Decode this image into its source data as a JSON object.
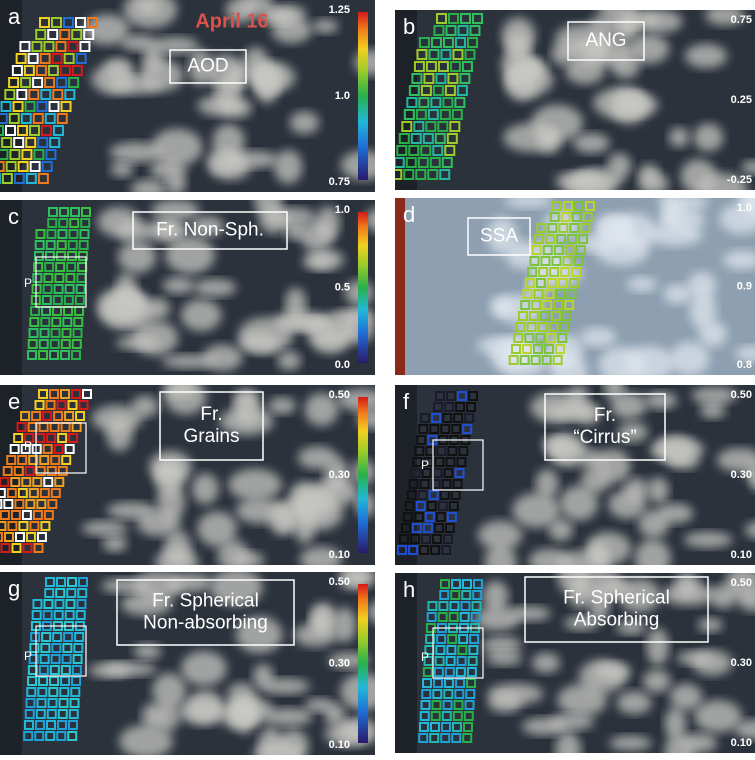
{
  "title": "April 16",
  "panels": [
    {
      "letter": "a",
      "label": [
        "AOD"
      ],
      "ticks": [
        "1.25",
        "1.0",
        "0.75"
      ]
    },
    {
      "letter": "b",
      "label": [
        "ANG"
      ],
      "ticks": [
        "0.75",
        "0.25",
        "-0.25"
      ]
    },
    {
      "letter": "c",
      "label": [
        "Fr. Non-Sph."
      ],
      "ticks": [
        "1.0",
        "0.5",
        "0.0"
      ],
      "marker": "P"
    },
    {
      "letter": "d",
      "label": [
        "SSA"
      ],
      "ticks": [
        "1.0",
        "0.9",
        "0.8"
      ]
    },
    {
      "letter": "e",
      "label": [
        "Fr.",
        "Grains"
      ],
      "ticks": [
        "0.50",
        "0.30",
        "0.10"
      ],
      "marker": "P"
    },
    {
      "letter": "f",
      "label": [
        "Fr.",
        "“Cirrus”"
      ],
      "ticks": [
        "0.50",
        "0.30",
        "0.10"
      ],
      "marker": "P"
    },
    {
      "letter": "g",
      "label": [
        "Fr. Spherical",
        "Non-absorbing"
      ],
      "ticks": [
        "0.50",
        "0.30",
        "0.10"
      ],
      "marker": "P"
    },
    {
      "letter": "h",
      "label": [
        "Fr. Spherical",
        "Absorbing"
      ],
      "ticks": [
        "0.50",
        "0.30",
        "0.10"
      ],
      "marker": "P"
    }
  ]
}
